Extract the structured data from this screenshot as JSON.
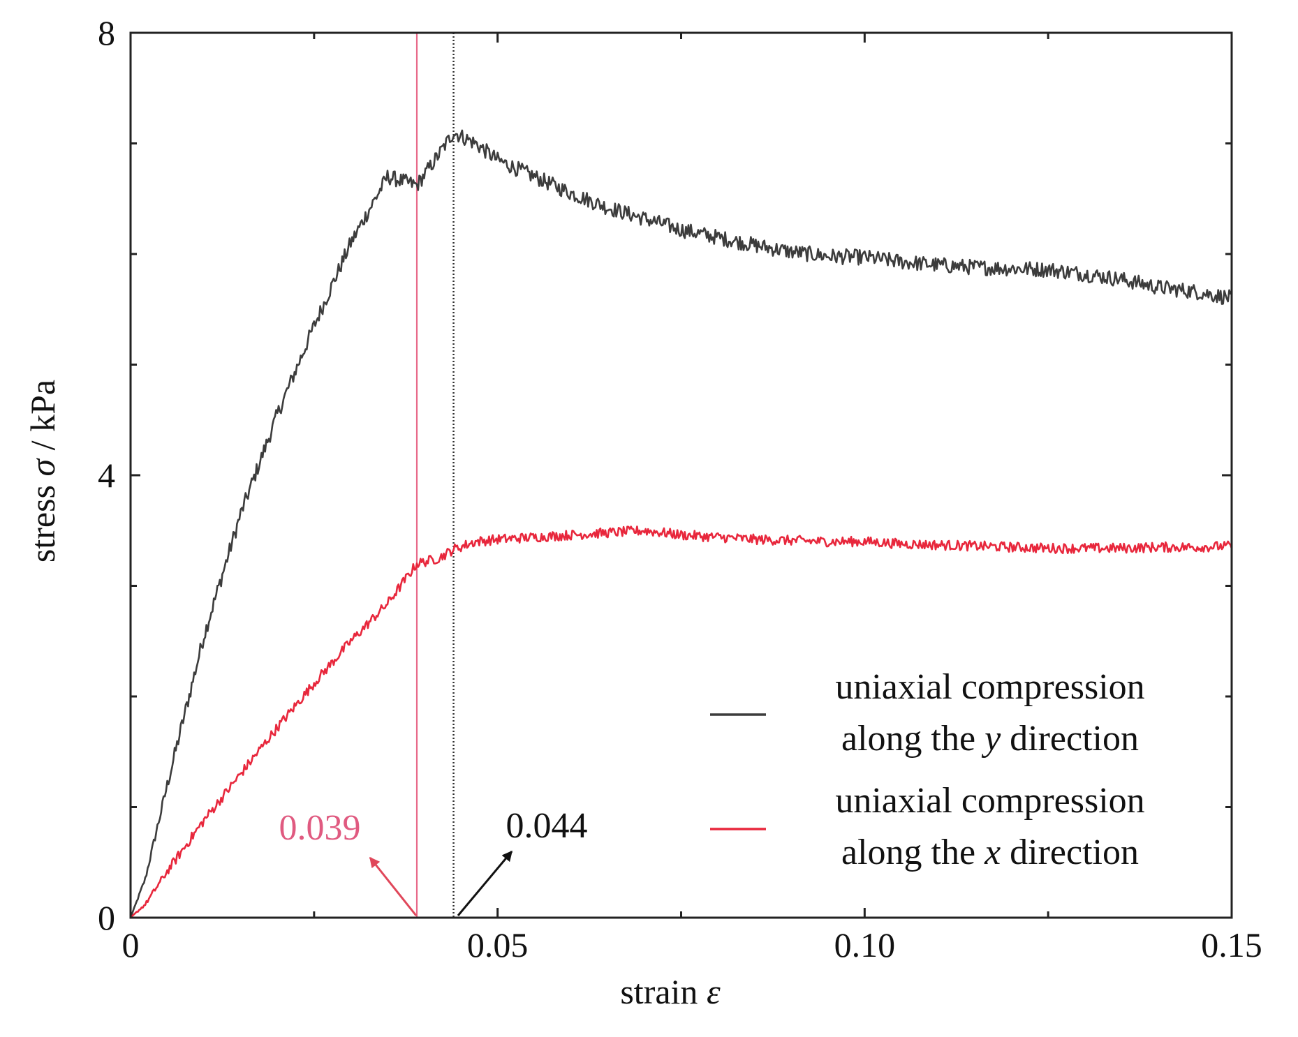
{
  "chart_data": {
    "type": "line",
    "xlabel_prefix": "strain ",
    "xlabel_symbol": "ε",
    "ylabel_prefix": "stress ",
    "ylabel_symbol": "σ",
    "ylabel_suffix": " / kPa",
    "xlim": [
      0,
      0.15
    ],
    "ylim": [
      0,
      8
    ],
    "x_major_ticks": [
      0,
      0.05,
      0.1,
      0.15
    ],
    "x_tick_labels": [
      "0",
      "0.05",
      "0.10",
      "0.15"
    ],
    "x_minor_ticks": [
      0.025,
      0.075,
      0.125
    ],
    "y_major_ticks": [
      0,
      4,
      8
    ],
    "y_tick_labels": [
      "0",
      "4",
      "8"
    ],
    "y_minor_ticks": [
      1,
      2,
      3,
      5,
      6,
      7
    ],
    "grid": false,
    "legend_position": "lower-right",
    "series": [
      {
        "name": "uniaxial compression along the y direction",
        "legend_line1": "uniaxial compression",
        "legend_line2_prefix": "along the ",
        "legend_line2_symbol": "y",
        "legend_line2_suffix": " direction",
        "color": "#3c3c3c",
        "x": [
          0,
          0.002,
          0.005,
          0.01,
          0.015,
          0.02,
          0.025,
          0.03,
          0.035,
          0.039,
          0.042,
          0.044,
          0.047,
          0.05,
          0.055,
          0.06,
          0.065,
          0.07,
          0.075,
          0.08,
          0.085,
          0.09,
          0.095,
          0.1,
          0.105,
          0.11,
          0.115,
          0.12,
          0.125,
          0.13,
          0.135,
          0.14,
          0.145,
          0.15
        ],
        "values": [
          0,
          0.35,
          1.2,
          2.55,
          3.65,
          4.55,
          5.35,
          6.1,
          6.7,
          6.62,
          6.9,
          7.1,
          7.0,
          6.85,
          6.7,
          6.55,
          6.42,
          6.32,
          6.22,
          6.15,
          6.08,
          6.02,
          5.98,
          5.97,
          5.93,
          5.9,
          5.88,
          5.87,
          5.86,
          5.82,
          5.77,
          5.7,
          5.66,
          5.6
        ]
      },
      {
        "name": "uniaxial compression along the x direction",
        "legend_line1": "uniaxial compression",
        "legend_line2_prefix": "along the ",
        "legend_line2_symbol": "x",
        "legend_line2_suffix": " direction",
        "color": "#e8273c",
        "x": [
          0,
          0.002,
          0.005,
          0.01,
          0.015,
          0.02,
          0.025,
          0.03,
          0.035,
          0.039,
          0.042,
          0.044,
          0.047,
          0.05,
          0.055,
          0.06,
          0.065,
          0.07,
          0.075,
          0.08,
          0.085,
          0.09,
          0.095,
          0.1,
          0.105,
          0.11,
          0.115,
          0.12,
          0.125,
          0.13,
          0.135,
          0.14,
          0.145,
          0.15
        ],
        "values": [
          0,
          0.12,
          0.42,
          0.88,
          1.3,
          1.72,
          2.12,
          2.5,
          2.84,
          3.2,
          3.25,
          3.33,
          3.4,
          3.42,
          3.44,
          3.46,
          3.48,
          3.5,
          3.46,
          3.44,
          3.42,
          3.41,
          3.4,
          3.4,
          3.38,
          3.37,
          3.36,
          3.35,
          3.34,
          3.34,
          3.34,
          3.35,
          3.35,
          3.36
        ]
      }
    ],
    "vlines": [
      {
        "x": 0.039,
        "color": "#e86a8a",
        "style": "solid"
      },
      {
        "x": 0.044,
        "color": "#333333",
        "style": "dotted"
      }
    ],
    "annotations": [
      {
        "text": "0.039",
        "color": "#e05a80",
        "arrow_color": "#e0475a",
        "points_to_x": 0.039
      },
      {
        "text": "0.044",
        "color": "#111111",
        "arrow_color": "#111111",
        "points_to_x": 0.044
      }
    ]
  }
}
